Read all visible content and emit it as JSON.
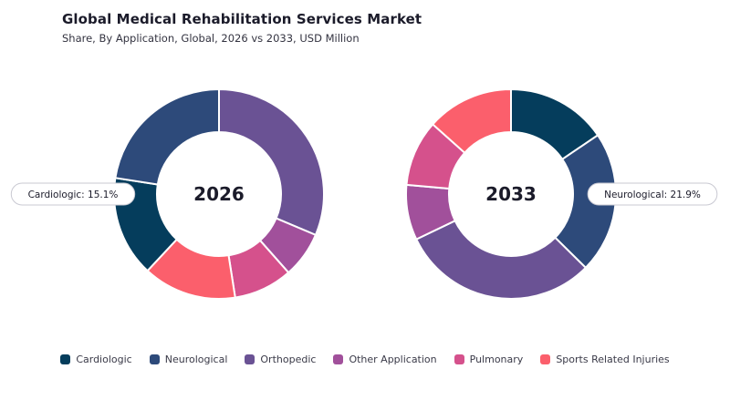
{
  "header": {
    "title": "Global Medical Rehabilitation Services Market",
    "subtitle": "Share, By Application, Global, 2026 vs 2033, USD Million"
  },
  "chart_data": [
    {
      "type": "pie",
      "subtype": "donut",
      "center_label": "2026",
      "categories": [
        "Cardiologic",
        "Neurological",
        "Orthopedic",
        "Other Application",
        "Pulmonary",
        "Sports Related Injuries"
      ],
      "colors": [
        "#053d5c",
        "#2d4a7a",
        "#6a5294",
        "#a1509b",
        "#d5518c",
        "#fb5f6c"
      ],
      "values": [
        15.1,
        21.9,
        30.5,
        6.9,
        8.8,
        14.0
      ],
      "start_category": "Orthopedic",
      "callout": {
        "category": "Cardiologic",
        "text": "Cardiologic: 15.1%"
      }
    },
    {
      "type": "pie",
      "subtype": "donut",
      "center_label": "2033",
      "categories": [
        "Cardiologic",
        "Neurological",
        "Orthopedic",
        "Other Application",
        "Pulmonary",
        "Sports Related Injuries"
      ],
      "colors": [
        "#053d5c",
        "#2d4a7a",
        "#6a5294",
        "#a1509b",
        "#d5518c",
        "#fb5f6c"
      ],
      "values": [
        15.5,
        21.9,
        30.5,
        8.5,
        10.2,
        13.4
      ],
      "start_category": "Cardiologic",
      "callout": {
        "category": "Neurological",
        "text": "Neurological: 21.9%"
      }
    }
  ],
  "legend": {
    "position": "bottom-center",
    "items": [
      {
        "label": "Cardiologic",
        "color": "#053d5c"
      },
      {
        "label": "Neurological",
        "color": "#2d4a7a"
      },
      {
        "label": "Orthopedic",
        "color": "#6a5294"
      },
      {
        "label": "Other Application",
        "color": "#a1509b"
      },
      {
        "label": "Pulmonary",
        "color": "#d5518c"
      },
      {
        "label": "Sports Related Injuries",
        "color": "#fb5f6c"
      }
    ]
  }
}
